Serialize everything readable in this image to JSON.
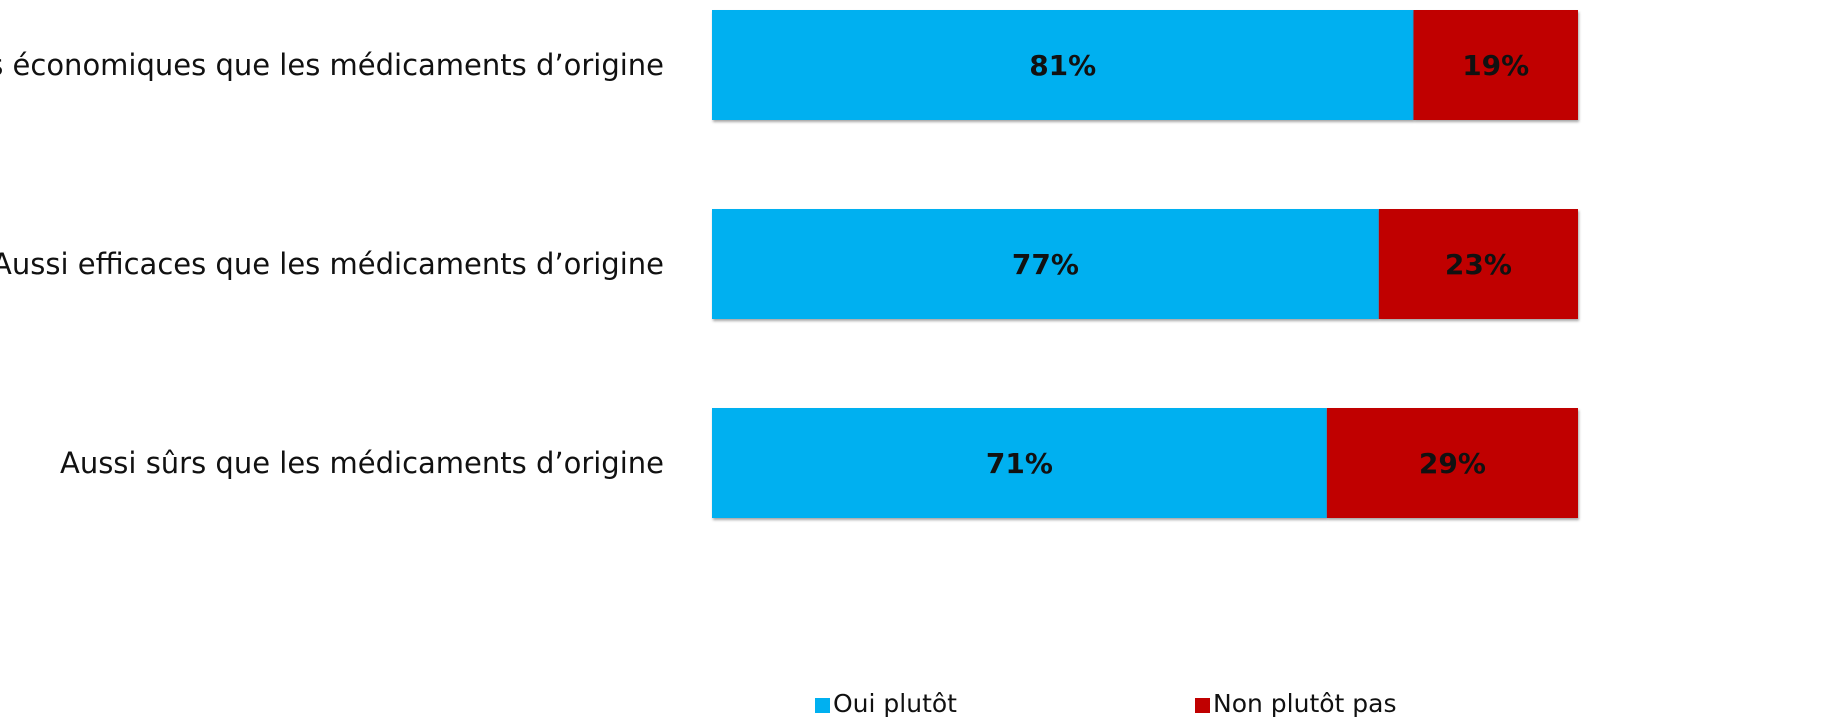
{
  "chart_data": {
    "type": "bar",
    "orientation": "horizontal",
    "stacked": true,
    "categories": [
      "Plus économiques que les médicaments d’origine",
      "Aussi efficaces que les médicaments d’origine",
      "Aussi sûrs que les médicaments d’origine"
    ],
    "series": [
      {
        "name": "Oui plutôt",
        "color": "#00b0f0",
        "values": [
          81,
          77,
          71
        ],
        "labels": [
          "81%",
          "77%",
          "71%"
        ]
      },
      {
        "name": "Non plutôt pas",
        "color": "#c00000",
        "values": [
          19,
          23,
          29
        ],
        "labels": [
          "19%",
          "23%",
          "29%"
        ]
      }
    ],
    "xlim": [
      0,
      100
    ],
    "unit": "%",
    "grid": false,
    "legend_position": "bottom",
    "title": "",
    "xlabel": "",
    "ylabel": ""
  }
}
